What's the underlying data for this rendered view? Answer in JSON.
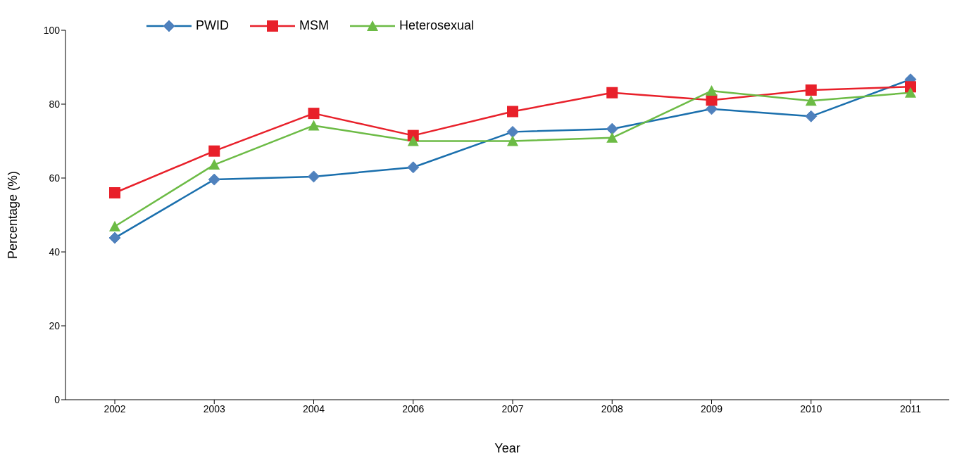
{
  "chart_data": {
    "type": "line",
    "xlabel": "Year",
    "ylabel": "Percentage (%)",
    "categories": [
      "2002",
      "2003",
      "2004",
      "2006",
      "2007",
      "2008",
      "2009",
      "2010",
      "2011"
    ],
    "series": [
      {
        "name": "PWID",
        "color": "#1a6fad",
        "marker": "diamond",
        "values": [
          43.8,
          59.6,
          60.4,
          62.9,
          72.5,
          73.3,
          78.7,
          76.7,
          86.7
        ]
      },
      {
        "name": "MSM",
        "color": "#e8202a",
        "marker": "square",
        "values": [
          56,
          67.3,
          77.5,
          71.5,
          78,
          83.1,
          81.1,
          83.8,
          84.7
        ]
      },
      {
        "name": "Heterosexual",
        "color": "#6cbb45",
        "marker": "triangle",
        "values": [
          46.9,
          63.6,
          74.2,
          70,
          70,
          70.9,
          83.6,
          80.9,
          83.1
        ]
      }
    ],
    "ylim": [
      0,
      100
    ],
    "yticks": [
      0,
      20,
      40,
      60,
      80,
      100
    ],
    "grid": false,
    "legend": "top left",
    "line_style": "solid"
  }
}
